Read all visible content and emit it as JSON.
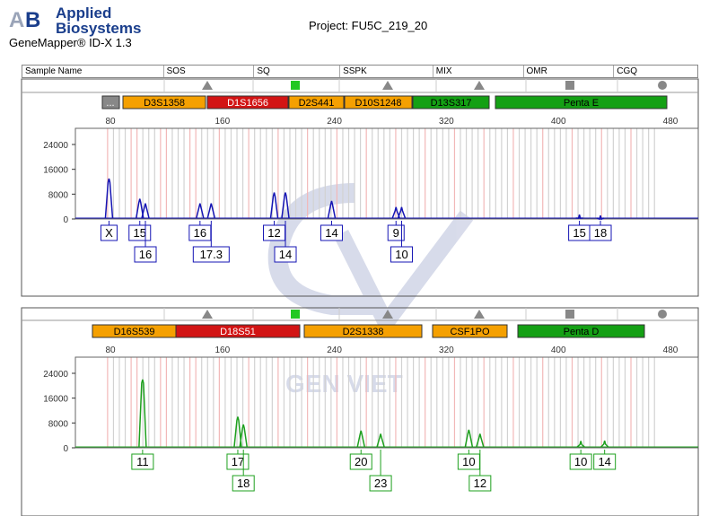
{
  "header": {
    "brand_line1": "Applied",
    "brand_line2": "Biosystems",
    "app_title": "GeneMapper® ID-X  1.3",
    "project": "Project: FU5C_219_20"
  },
  "columns": [
    "Sample Name",
    "SOS",
    "SQ",
    "SSPK",
    "MIX",
    "OMR",
    "CGQ"
  ],
  "quality_icons": [
    "triangle-icon",
    "green-square-icon",
    "triangle-icon",
    "triangle-icon",
    "gray-square-icon",
    "circle-icon"
  ],
  "watermark": "GEN VIET",
  "x_ticks": [
    80,
    160,
    240,
    320,
    400,
    480
  ],
  "y_ticks": [
    0,
    8000,
    16000,
    24000
  ],
  "panel1": {
    "color": "#1515b4",
    "ellipsis_label": "...",
    "markers": [
      {
        "name": "D3S1358",
        "color": "#f5a000",
        "text": "#000"
      },
      {
        "name": "D1S1656",
        "color": "#d21414",
        "text": "#fff"
      },
      {
        "name": "D2S441",
        "color": "#f5a000",
        "text": "#000"
      },
      {
        "name": "D10S1248",
        "color": "#f5a000",
        "text": "#000"
      },
      {
        "name": "D13S317",
        "color": "#14a014",
        "text": "#000"
      },
      {
        "name": "Penta E",
        "color": "#14a014",
        "text": "#000"
      }
    ],
    "peaks": [
      {
        "size": 79,
        "height": 13000,
        "label": "X",
        "row": 1
      },
      {
        "size": 101,
        "height": 6500,
        "label": "15",
        "row": 1
      },
      {
        "size": 105,
        "height": 5000,
        "label": "16",
        "row": 2
      },
      {
        "size": 144,
        "height": 5000,
        "label": "16",
        "row": 1
      },
      {
        "size": 152,
        "height": 5000,
        "label": "17.3",
        "row": 2
      },
      {
        "size": 197,
        "height": 8500,
        "label": "12",
        "row": 1
      },
      {
        "size": 205,
        "height": 8500,
        "label": "14",
        "row": 2
      },
      {
        "size": 238,
        "height": 5800,
        "label": "14",
        "row": 1
      },
      {
        "size": 284,
        "height": 3800,
        "label": "9",
        "row": 1
      },
      {
        "size": 288,
        "height": 3800,
        "label": "10",
        "row": 2
      },
      {
        "size": 415,
        "height": 1400,
        "label": "15",
        "row": 1
      },
      {
        "size": 430,
        "height": 1100,
        "label": "18",
        "row": 1
      }
    ]
  },
  "panel2": {
    "color": "#1ea01e",
    "markers": [
      {
        "name": "D16S539",
        "color": "#f5a000",
        "text": "#000"
      },
      {
        "name": "D18S51",
        "color": "#d21414",
        "text": "#fff"
      },
      {
        "name": "D2S1338",
        "color": "#f5a000",
        "text": "#000"
      },
      {
        "name": "CSF1PO",
        "color": "#f5a000",
        "text": "#000"
      },
      {
        "name": "Penta D",
        "color": "#14a014",
        "text": "#000"
      }
    ],
    "peaks": [
      {
        "size": 103,
        "height": 22000,
        "label": "11",
        "row": 1
      },
      {
        "size": 171,
        "height": 10000,
        "label": "17",
        "row": 1
      },
      {
        "size": 175,
        "height": 7500,
        "label": "18",
        "row": 2
      },
      {
        "size": 259,
        "height": 5500,
        "label": "20",
        "row": 1
      },
      {
        "size": 273,
        "height": 4500,
        "label": "23",
        "row": 2
      },
      {
        "size": 336,
        "height": 5800,
        "label": "10",
        "row": 1
      },
      {
        "size": 344,
        "height": 4500,
        "label": "12",
        "row": 2
      },
      {
        "size": 416,
        "height": 2200,
        "label": "10",
        "row": 1
      },
      {
        "size": 433,
        "height": 2300,
        "label": "14",
        "row": 1
      }
    ]
  }
}
